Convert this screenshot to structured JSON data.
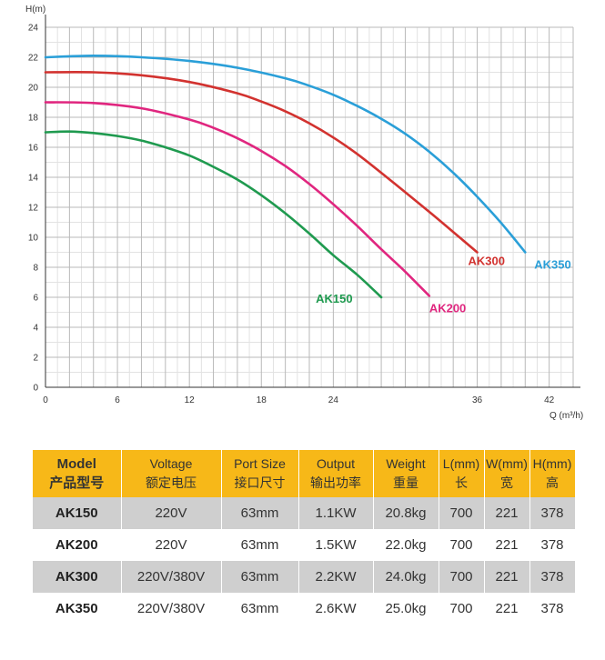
{
  "chart_data": {
    "type": "line",
    "xlabel": "Q (m³/h)",
    "ylabel": "H(m)",
    "xlim": [
      0,
      44
    ],
    "ylim": [
      0,
      24
    ],
    "x_ticks": [
      0,
      6,
      12,
      18,
      24,
      36,
      42
    ],
    "y_ticks": [
      0,
      2,
      4,
      6,
      8,
      10,
      12,
      14,
      16,
      18,
      20,
      22,
      24
    ],
    "grid": true,
    "series": [
      {
        "name": "AK150",
        "color": "#1f9a4f",
        "x": [
          0,
          2,
          4,
          6,
          8,
          10,
          12,
          14,
          16,
          18,
          20,
          22,
          24,
          26,
          28
        ],
        "y": [
          17.0,
          17.05,
          16.95,
          16.75,
          16.45,
          16.0,
          15.45,
          14.7,
          13.85,
          12.8,
          11.6,
          10.25,
          8.8,
          7.5,
          6.0
        ]
      },
      {
        "name": "AK200",
        "color": "#e0267f",
        "x": [
          0,
          4,
          8,
          12,
          14,
          16,
          18,
          20,
          22,
          24,
          26,
          28,
          30,
          32
        ],
        "y": [
          19.0,
          18.95,
          18.6,
          17.85,
          17.3,
          16.6,
          15.75,
          14.75,
          13.55,
          12.2,
          10.75,
          9.2,
          7.7,
          6.1
        ]
      },
      {
        "name": "AK300",
        "color": "#d2322f",
        "x": [
          0,
          4,
          8,
          12,
          16,
          18,
          20,
          22,
          24,
          26,
          28,
          30,
          32,
          34,
          36
        ],
        "y": [
          21.0,
          21.0,
          20.8,
          20.35,
          19.6,
          19.05,
          18.4,
          17.6,
          16.65,
          15.55,
          14.3,
          13.0,
          11.7,
          10.35,
          9.0
        ]
      },
      {
        "name": "AK350",
        "color": "#2a9fd8",
        "x": [
          0,
          4,
          8,
          12,
          16,
          20,
          22,
          24,
          26,
          28,
          30,
          32,
          34,
          36,
          38,
          40
        ],
        "y": [
          22.0,
          22.1,
          22.0,
          21.75,
          21.3,
          20.6,
          20.1,
          19.5,
          18.75,
          17.9,
          16.9,
          15.7,
          14.3,
          12.7,
          10.95,
          9.0
        ]
      }
    ]
  },
  "table": {
    "headers": [
      {
        "en": "Model",
        "cn": "产品型号"
      },
      {
        "en": "Voltage",
        "cn": "额定电压"
      },
      {
        "en": "Port Size",
        "cn": "接口尺寸"
      },
      {
        "en": "Output",
        "cn": "输出功率"
      },
      {
        "en": "Weight",
        "cn": "重量"
      },
      {
        "en": "L(mm)",
        "cn": "长"
      },
      {
        "en": "W(mm)",
        "cn": "宽"
      },
      {
        "en": "H(mm)",
        "cn": "高"
      }
    ],
    "rows": [
      [
        "AK150",
        "220V",
        "63mm",
        "1.1KW",
        "20.8kg",
        "700",
        "221",
        "378"
      ],
      [
        "AK200",
        "220V",
        "63mm",
        "1.5KW",
        "22.0kg",
        "700",
        "221",
        "378"
      ],
      [
        "AK300",
        "220V/380V",
        "63mm",
        "2.2KW",
        "24.0kg",
        "700",
        "221",
        "378"
      ],
      [
        "AK350",
        "220V/380V",
        "63mm",
        "2.6KW",
        "25.0kg",
        "700",
        "221",
        "378"
      ]
    ],
    "header_bg": "#f7b818",
    "shaded_row_bg": "#cfcfcf"
  }
}
